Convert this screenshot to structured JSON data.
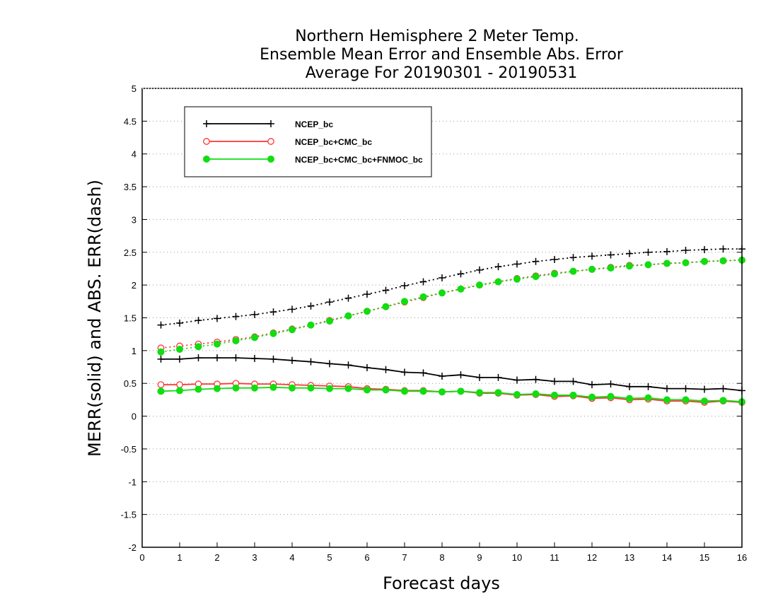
{
  "chart_data": {
    "type": "line",
    "title_lines": [
      "Northern Hemisphere 2 Meter Temp.",
      "Ensemble Mean Error and Ensemble Abs. Error",
      "Average For 20190301 - 20190531"
    ],
    "xlabel": "Forecast days",
    "ylabel": "MERR(solid) and ABS. ERR(dash)",
    "xlim": [
      0,
      16
    ],
    "ylim": [
      -2,
      5
    ],
    "xticks": [
      0,
      1,
      2,
      3,
      4,
      5,
      6,
      7,
      8,
      9,
      10,
      11,
      12,
      13,
      14,
      15,
      16
    ],
    "yticks": [
      -2,
      -1.5,
      -1,
      -0.5,
      0,
      0.5,
      1,
      1.5,
      2,
      2.5,
      3,
      3.5,
      4,
      4.5,
      5
    ],
    "grid": "horizontal dotted",
    "legend_position": "top-left",
    "x": [
      0.5,
      1,
      1.5,
      2,
      2.5,
      3,
      3.5,
      4,
      4.5,
      5,
      5.5,
      6,
      6.5,
      7,
      7.5,
      8,
      8.5,
      9,
      9.5,
      10,
      10.5,
      11,
      11.5,
      12,
      12.5,
      13,
      13.5,
      14,
      14.5,
      15,
      15.5,
      16
    ],
    "series": [
      {
        "name": "NCEP_bc",
        "color": "#000000",
        "marker": "plus",
        "merr": [
          0.87,
          0.87,
          0.89,
          0.89,
          0.89,
          0.88,
          0.87,
          0.85,
          0.83,
          0.8,
          0.78,
          0.74,
          0.71,
          0.67,
          0.66,
          0.61,
          0.63,
          0.59,
          0.59,
          0.55,
          0.56,
          0.53,
          0.53,
          0.48,
          0.49,
          0.45,
          0.45,
          0.42,
          0.42,
          0.41,
          0.42,
          0.39
        ],
        "abs_err": [
          1.39,
          1.42,
          1.46,
          1.49,
          1.52,
          1.55,
          1.59,
          1.63,
          1.68,
          1.74,
          1.8,
          1.86,
          1.92,
          1.99,
          2.05,
          2.11,
          2.17,
          2.23,
          2.28,
          2.32,
          2.36,
          2.39,
          2.42,
          2.44,
          2.46,
          2.48,
          2.5,
          2.51,
          2.53,
          2.54,
          2.55,
          2.55
        ]
      },
      {
        "name": "NCEP_bc+CMC_bc",
        "color": "#ff3333",
        "marker": "open-circle",
        "merr": [
          0.48,
          0.48,
          0.49,
          0.49,
          0.5,
          0.49,
          0.49,
          0.48,
          0.47,
          0.46,
          0.45,
          0.42,
          0.41,
          0.39,
          0.39,
          0.37,
          0.38,
          0.35,
          0.35,
          0.32,
          0.33,
          0.3,
          0.31,
          0.27,
          0.28,
          0.25,
          0.26,
          0.23,
          0.23,
          0.21,
          0.23,
          0.21
        ],
        "abs_err": [
          1.04,
          1.07,
          1.1,
          1.13,
          1.17,
          1.21,
          1.27,
          1.33,
          1.39,
          1.46,
          1.53,
          1.6,
          1.67,
          1.74,
          1.81,
          1.88,
          1.94,
          2.0,
          2.05,
          2.1,
          2.14,
          2.18,
          2.21,
          2.24,
          2.27,
          2.3,
          2.31,
          2.33,
          2.34,
          2.36,
          2.37,
          2.38
        ]
      },
      {
        "name": "NCEP_bc+CMC_bc+FNMOC_bc",
        "color": "#11dd11",
        "marker": "filled-circle",
        "merr": [
          0.38,
          0.39,
          0.41,
          0.42,
          0.43,
          0.43,
          0.44,
          0.43,
          0.43,
          0.42,
          0.42,
          0.4,
          0.4,
          0.38,
          0.38,
          0.37,
          0.38,
          0.36,
          0.36,
          0.33,
          0.34,
          0.32,
          0.32,
          0.29,
          0.3,
          0.27,
          0.28,
          0.25,
          0.25,
          0.23,
          0.24,
          0.22
        ],
        "abs_err": [
          0.98,
          1.02,
          1.06,
          1.1,
          1.15,
          1.2,
          1.26,
          1.32,
          1.39,
          1.45,
          1.53,
          1.6,
          1.67,
          1.75,
          1.82,
          1.88,
          1.94,
          2.0,
          2.05,
          2.09,
          2.13,
          2.17,
          2.21,
          2.24,
          2.26,
          2.29,
          2.31,
          2.33,
          2.34,
          2.36,
          2.37,
          2.38
        ]
      }
    ]
  }
}
